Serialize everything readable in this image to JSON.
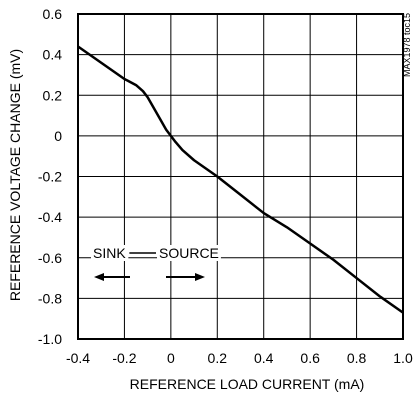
{
  "chart_data": {
    "type": "line",
    "xlabel": "REFERENCE LOAD CURRENT (mA)",
    "ylabel": "REFERENCE VOLTAGE CHANGE (mV)",
    "xlim": [
      -0.4,
      1.0
    ],
    "ylim": [
      -1.0,
      0.6
    ],
    "xticks": [
      -0.4,
      -0.2,
      0,
      0.2,
      0.4,
      0.6,
      0.8,
      1.0
    ],
    "yticks": [
      0.6,
      0.4,
      0.2,
      0,
      -0.2,
      -0.4,
      -0.6,
      -0.8,
      -1.0
    ],
    "xtick_labels": [
      "-0.4",
      "-0.2",
      "0",
      "0.2",
      "0.4",
      "0.6",
      "0.8",
      "1.0"
    ],
    "ytick_labels": [
      "0.6",
      "0.4",
      "0.2",
      "0",
      "-0.2",
      "-0.4",
      "-0.6",
      "-0.8",
      "-1.0"
    ],
    "grid": true,
    "series": [
      {
        "x": [
          -0.4,
          -0.35,
          -0.3,
          -0.25,
          -0.2,
          -0.15,
          -0.12,
          -0.1,
          -0.08,
          -0.06,
          -0.04,
          -0.02,
          0,
          0.02,
          0.05,
          0.1,
          0.15,
          0.2,
          0.3,
          0.4,
          0.5,
          0.6,
          0.7,
          0.8,
          0.9,
          1.0
        ],
        "y": [
          0.44,
          0.4,
          0.36,
          0.32,
          0.28,
          0.25,
          0.22,
          0.19,
          0.15,
          0.11,
          0.07,
          0.03,
          0.0,
          -0.03,
          -0.07,
          -0.12,
          -0.16,
          -0.2,
          -0.29,
          -0.38,
          -0.45,
          -0.53,
          -0.61,
          -0.7,
          -0.79,
          -0.87
        ]
      }
    ],
    "annotations": {
      "sink": "SINK",
      "source": "SOURCE",
      "side_code": "MAX1978 toc15"
    }
  }
}
